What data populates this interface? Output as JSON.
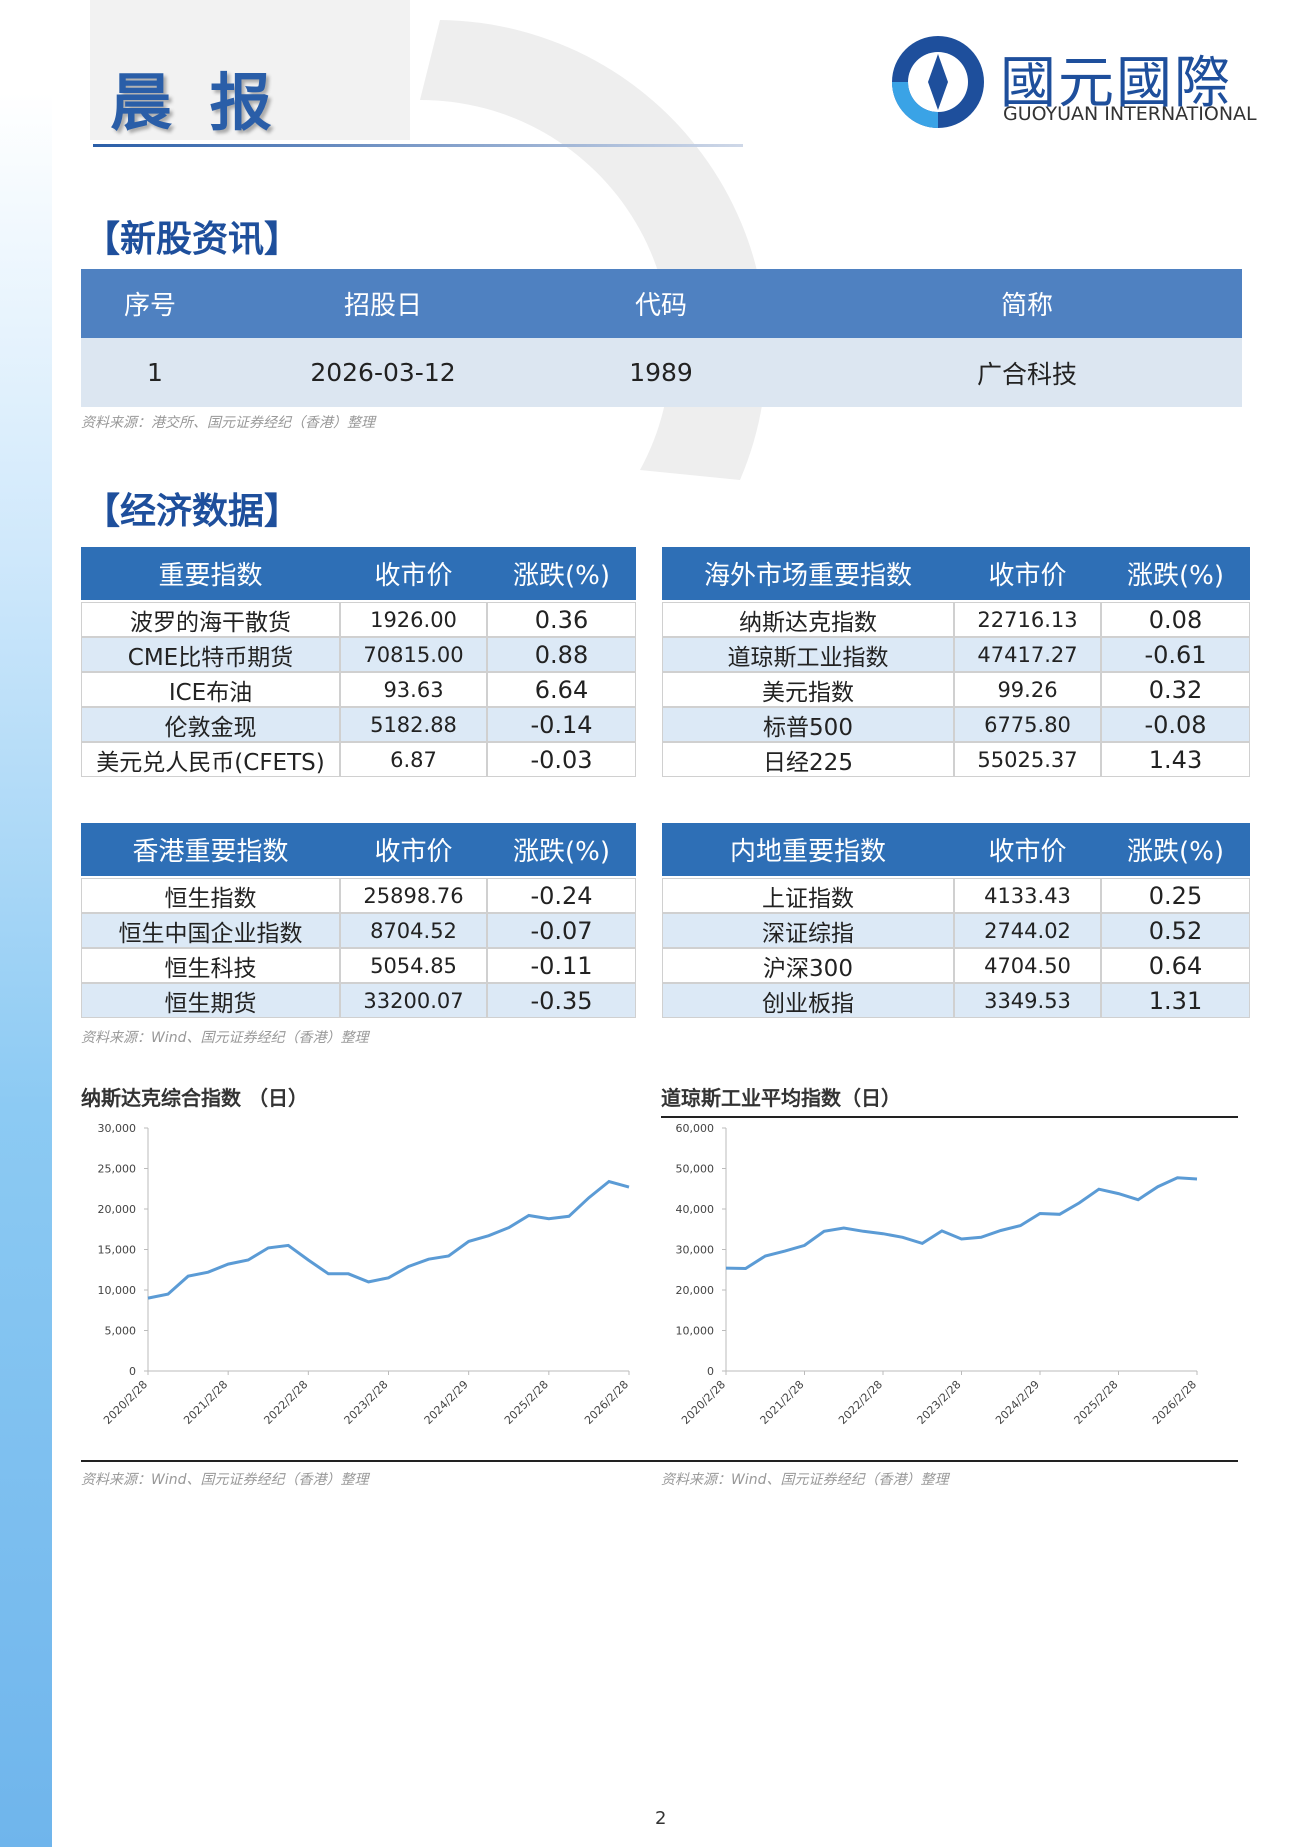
{
  "header": {
    "title": "晨 报",
    "logo_cn": "國元國際",
    "logo_en": "GUOYUAN INTERNATIONAL"
  },
  "ipo": {
    "heading": "【新股资讯】",
    "columns": [
      "序号",
      "招股日",
      "代码",
      "简称"
    ],
    "rows": [
      [
        "1",
        "2026-03-12",
        "1989",
        "广合科技"
      ]
    ],
    "source": "资料来源：港交所、国元证券经纪（香港）整理"
  },
  "econ": {
    "heading": "【经济数据】",
    "tables": [
      {
        "columns": [
          "重要指数",
          "收市价",
          "涨跌(%)"
        ],
        "rows": [
          [
            "波罗的海干散货",
            "1926.00",
            "0.36"
          ],
          [
            "CME比特币期货",
            "70815.00",
            "0.88"
          ],
          [
            "ICE布油",
            "93.63",
            "6.64"
          ],
          [
            "伦敦金现",
            "5182.88",
            "-0.14"
          ],
          [
            "美元兑人民币(CFETS)",
            "6.87",
            "-0.03"
          ]
        ]
      },
      {
        "columns": [
          "海外市场重要指数",
          "收市价",
          "涨跌(%)"
        ],
        "rows": [
          [
            "纳斯达克指数",
            "22716.13",
            "0.08"
          ],
          [
            "道琼斯工业指数",
            "47417.27",
            "-0.61"
          ],
          [
            "美元指数",
            "99.26",
            "0.32"
          ],
          [
            "标普500",
            "6775.80",
            "-0.08"
          ],
          [
            "日经225",
            "55025.37",
            "1.43"
          ]
        ]
      },
      {
        "columns": [
          "香港重要指数",
          "收市价",
          "涨跌(%)"
        ],
        "rows": [
          [
            "恒生指数",
            "25898.76",
            "-0.24"
          ],
          [
            "恒生中国企业指数",
            "8704.52",
            "-0.07"
          ],
          [
            "恒生科技",
            "5054.85",
            "-0.11"
          ],
          [
            "恒生期货",
            "33200.07",
            "-0.35"
          ]
        ]
      },
      {
        "columns": [
          "内地重要指数",
          "收市价",
          "涨跌(%)"
        ],
        "rows": [
          [
            "上证指数",
            "4133.43",
            "0.25"
          ],
          [
            "深证综指",
            "2744.02",
            "0.52"
          ],
          [
            "沪深300",
            "4704.50",
            "0.64"
          ],
          [
            "创业板指",
            "3349.53",
            "1.31"
          ]
        ]
      }
    ],
    "source": "资料来源：Wind、国元证券经纪（香港）整理"
  },
  "chart_data": [
    {
      "type": "line",
      "title": "纳斯达克综合指数 （日）",
      "source": "资料来源：Wind、国元证券经纪（香港）整理",
      "color": "#5b9bd5",
      "xticks": [
        "2020/2/28",
        "2021/2/28",
        "2022/2/28",
        "2023/2/28",
        "2024/2/29",
        "2025/2/28",
        "2026/2/28"
      ],
      "values": [
        9000,
        9500,
        11700,
        12200,
        13200,
        13700,
        15200,
        15500,
        13700,
        12000,
        12000,
        11000,
        11500,
        12900,
        13800,
        14200,
        16000,
        16700,
        17700,
        19200,
        18800,
        19100,
        21400,
        23400,
        22700
      ],
      "ylim": [
        0,
        30000
      ],
      "yticks": [
        0,
        {
          "value": 5000,
          "label": "5,000"
        },
        {
          "value": 10000,
          "label": "10,000"
        },
        {
          "value": 15000,
          "label": "15,000"
        },
        {
          "value": 20000,
          "label": "20,000"
        },
        {
          "value": 25000,
          "label": "25,000"
        },
        {
          "value": 30000,
          "label": "30,000"
        }
      ]
    },
    {
      "type": "line",
      "title": "道琼斯工业平均指数（日）",
      "source": "资料来源：Wind、国元证券经纪（香港）整理",
      "color": "#5b9bd5",
      "xticks": [
        "2020/2/28",
        "2021/2/28",
        "2022/2/28",
        "2023/2/28",
        "2024/2/29",
        "2025/2/28",
        "2026/2/28"
      ],
      "values": [
        25400,
        25300,
        28400,
        29600,
        31000,
        34500,
        35300,
        34500,
        33900,
        33000,
        31500,
        34600,
        32600,
        33000,
        34700,
        35900,
        38900,
        38700,
        41500,
        44900,
        43800,
        42300,
        45500,
        47700,
        47400
      ],
      "ylim": [
        0,
        60000
      ],
      "yticks": [
        0,
        {
          "value": 10000,
          "label": "10,000"
        },
        {
          "value": 20000,
          "label": "20,000"
        },
        {
          "value": 30000,
          "label": "30,000"
        },
        {
          "value": 40000,
          "label": "40,000"
        },
        {
          "value": 50000,
          "label": "50,000"
        },
        {
          "value": 60000,
          "label": "60,000"
        }
      ]
    }
  ],
  "page_number": "2"
}
